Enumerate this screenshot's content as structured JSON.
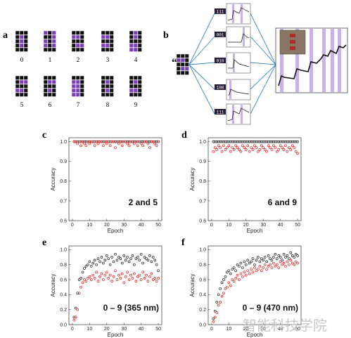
{
  "panels": {
    "a": "a",
    "b": "b",
    "c": "c",
    "d": "d",
    "e": "e",
    "f": "f"
  },
  "digits": {
    "labels": [
      "0",
      "1",
      "2",
      "3",
      "4",
      "5",
      "6",
      "7",
      "8",
      "9"
    ],
    "patterns": [
      [
        "111",
        "101",
        "101",
        "101",
        "111"
      ],
      [
        "010",
        "110",
        "010",
        "010",
        "111"
      ],
      [
        "111",
        "001",
        "111",
        "100",
        "111"
      ],
      [
        "111",
        "001",
        "111",
        "001",
        "111"
      ],
      [
        "101",
        "101",
        "111",
        "001",
        "001"
      ],
      [
        "111",
        "100",
        "111",
        "001",
        "111"
      ],
      [
        "111",
        "100",
        "111",
        "101",
        "111"
      ],
      [
        "111",
        "001",
        "001",
        "001",
        "001"
      ],
      [
        "111",
        "101",
        "111",
        "101",
        "111"
      ],
      [
        "111",
        "101",
        "111",
        "001",
        "111"
      ]
    ]
  },
  "diagram_b": {
    "quote": "“2”",
    "codes": [
      "111",
      "001",
      "010",
      "100",
      "111"
    ]
  },
  "colors": {
    "purple": "#7a3fb5",
    "light_purple": "#c9b3e6",
    "black_series": "#222222",
    "red_series": "#e02020",
    "line_blue": "#3a86c8"
  },
  "watermark": "智能科技学院",
  "chart_data": [
    {
      "id": "c",
      "type": "scatter",
      "xlabel": "Epoch",
      "ylabel": "Accuracy",
      "annotation": "2 and 5",
      "xlim": [
        -2,
        52
      ],
      "ylim": [
        0.6,
        1.02
      ],
      "xticks": [
        "0",
        "10",
        "20",
        "30",
        "40",
        "50"
      ],
      "yticks": [
        "0.6",
        "0.7",
        "0.8",
        "0.9",
        "1.0"
      ],
      "series": [
        {
          "color": "black",
          "x": [
            1,
            2,
            3,
            4,
            5,
            6,
            7,
            8,
            9,
            10,
            11,
            12,
            13,
            14,
            15,
            16,
            17,
            18,
            19,
            20,
            21,
            22,
            23,
            24,
            25,
            26,
            27,
            28,
            29,
            30,
            31,
            32,
            33,
            34,
            35,
            36,
            37,
            38,
            39,
            40,
            41,
            42,
            43,
            44,
            45,
            46,
            47,
            48,
            49,
            50
          ],
          "y": [
            1,
            1,
            1,
            1,
            1,
            1,
            1,
            1,
            1,
            1,
            1,
            1,
            1,
            1,
            1,
            1,
            1,
            1,
            1,
            1,
            1,
            1,
            1,
            1,
            1,
            1,
            1,
            1,
            1,
            1,
            1,
            1,
            1,
            1,
            1,
            1,
            1,
            1,
            1,
            1,
            1,
            1,
            1,
            1,
            1,
            1,
            1,
            1,
            1,
            1
          ]
        },
        {
          "color": "red",
          "x": [
            1,
            2,
            3,
            4,
            5,
            6,
            7,
            8,
            9,
            10,
            11,
            12,
            13,
            14,
            15,
            16,
            17,
            18,
            19,
            20,
            21,
            22,
            23,
            24,
            25,
            26,
            27,
            28,
            29,
            30,
            31,
            32,
            33,
            34,
            35,
            36,
            37,
            38,
            39,
            40,
            41,
            42,
            43,
            44,
            45,
            46,
            47,
            48,
            49,
            50
          ],
          "y": [
            1,
            1,
            0.99,
            1,
            0.98,
            1,
            0.99,
            0.98,
            1,
            0.99,
            1,
            1,
            0.98,
            1,
            0.99,
            1,
            1,
            0.98,
            1,
            0.99,
            1,
            0.98,
            1,
            1,
            0.97,
            1,
            0.99,
            1,
            0.98,
            1,
            1,
            0.99,
            0.98,
            1,
            1,
            0.99,
            1,
            0.98,
            1,
            0.99,
            0.98,
            1,
            1,
            0.99,
            0.97,
            1,
            1,
            0.99,
            0.98,
            1
          ]
        }
      ]
    },
    {
      "id": "d",
      "type": "scatter",
      "xlabel": "Epoch",
      "ylabel": "Accuracy",
      "annotation": "6 and 9",
      "xlim": [
        -2,
        52
      ],
      "ylim": [
        0.6,
        1.02
      ],
      "xticks": [
        "0",
        "10",
        "20",
        "30",
        "40",
        "50"
      ],
      "yticks": [
        "0.6",
        "0.7",
        "0.8",
        "0.9",
        "1.0"
      ],
      "series": [
        {
          "color": "black",
          "x": [
            1,
            2,
            3,
            4,
            5,
            6,
            7,
            8,
            9,
            10,
            11,
            12,
            13,
            14,
            15,
            16,
            17,
            18,
            19,
            20,
            21,
            22,
            23,
            24,
            25,
            26,
            27,
            28,
            29,
            30,
            31,
            32,
            33,
            34,
            35,
            36,
            37,
            38,
            39,
            40,
            41,
            42,
            43,
            44,
            45,
            46,
            47,
            48,
            49,
            50
          ],
          "y": [
            1,
            1,
            1,
            1,
            1,
            1,
            1,
            1,
            1,
            1,
            1,
            1,
            1,
            1,
            1,
            1,
            1,
            1,
            1,
            1,
            1,
            1,
            1,
            1,
            1,
            1,
            1,
            1,
            1,
            1,
            1,
            1,
            1,
            1,
            1,
            1,
            1,
            1,
            1,
            1,
            1,
            1,
            1,
            1,
            1,
            1,
            1,
            1,
            1,
            1
          ]
        },
        {
          "color": "red",
          "x": [
            1,
            2,
            3,
            4,
            5,
            6,
            7,
            8,
            9,
            10,
            11,
            12,
            13,
            14,
            15,
            16,
            17,
            18,
            19,
            20,
            21,
            22,
            23,
            24,
            25,
            26,
            27,
            28,
            29,
            30,
            31,
            32,
            33,
            34,
            35,
            36,
            37,
            38,
            39,
            40,
            41,
            42,
            43,
            44,
            45,
            46,
            47,
            48,
            49,
            50
          ],
          "y": [
            0.95,
            0.97,
            0.96,
            0.98,
            0.97,
            0.95,
            0.98,
            0.96,
            0.97,
            0.98,
            0.95,
            0.97,
            0.96,
            0.98,
            0.97,
            0.96,
            0.95,
            0.98,
            0.97,
            0.96,
            0.98,
            0.95,
            0.97,
            0.96,
            0.98,
            0.97,
            0.95,
            0.96,
            0.98,
            0.97,
            0.96,
            0.95,
            0.98,
            0.97,
            0.96,
            0.98,
            0.97,
            0.95,
            0.96,
            0.98,
            0.97,
            0.96,
            0.98,
            0.95,
            0.97,
            0.96,
            0.98,
            0.97,
            0.95,
            0.94
          ]
        }
      ]
    },
    {
      "id": "e",
      "type": "scatter",
      "xlabel": "Epoch",
      "ylabel": "Accuracy",
      "annotation": "0 – 9 (365 nm)",
      "xlim": [
        -2,
        52
      ],
      "ylim": [
        0.0,
        1.05
      ],
      "xticks": [
        "0",
        "10",
        "20",
        "30",
        "40",
        "50"
      ],
      "yticks": [
        "0.0",
        "0.2",
        "0.4",
        "0.6",
        "0.8",
        "1.0"
      ],
      "series": [
        {
          "color": "black",
          "x": [
            1,
            2,
            3,
            4,
            5,
            6,
            7,
            8,
            9,
            10,
            11,
            12,
            13,
            14,
            15,
            16,
            17,
            18,
            19,
            20,
            21,
            22,
            23,
            24,
            25,
            26,
            27,
            28,
            29,
            30,
            31,
            32,
            33,
            34,
            35,
            36,
            37,
            38,
            39,
            40,
            41,
            42,
            43,
            44,
            45,
            46,
            47,
            48,
            49,
            50
          ],
          "y": [
            0.1,
            0.22,
            0.42,
            0.6,
            0.62,
            0.7,
            0.75,
            0.78,
            0.8,
            0.84,
            0.78,
            0.82,
            0.86,
            0.8,
            0.88,
            0.84,
            0.9,
            0.82,
            0.86,
            0.92,
            0.88,
            0.8,
            0.9,
            0.84,
            0.94,
            0.86,
            0.9,
            0.88,
            0.82,
            0.92,
            0.86,
            0.9,
            0.84,
            0.88,
            0.92,
            0.8,
            0.88,
            0.9,
            0.86,
            0.94,
            0.82,
            0.9,
            0.88,
            0.86,
            0.92,
            0.84,
            0.9,
            0.86,
            0.8,
            0.72
          ]
        },
        {
          "color": "red",
          "x": [
            1,
            2,
            3,
            4,
            5,
            6,
            7,
            8,
            9,
            10,
            11,
            12,
            13,
            14,
            15,
            16,
            17,
            18,
            19,
            20,
            21,
            22,
            23,
            24,
            25,
            26,
            27,
            28,
            29,
            30,
            31,
            32,
            33,
            34,
            35,
            36,
            37,
            38,
            39,
            40,
            41,
            42,
            43,
            44,
            45,
            46,
            47,
            48,
            49,
            50
          ],
          "y": [
            0.06,
            0.1,
            0.2,
            0.42,
            0.5,
            0.56,
            0.6,
            0.58,
            0.62,
            0.64,
            0.6,
            0.66,
            0.62,
            0.7,
            0.58,
            0.64,
            0.68,
            0.6,
            0.66,
            0.7,
            0.62,
            0.66,
            0.58,
            0.64,
            0.72,
            0.6,
            0.66,
            0.62,
            0.68,
            0.56,
            0.64,
            0.7,
            0.6,
            0.66,
            0.62,
            0.68,
            0.58,
            0.64,
            0.66,
            0.6,
            0.7,
            0.62,
            0.66,
            0.58,
            0.64,
            0.68,
            0.6,
            0.62,
            0.58,
            0.62
          ]
        }
      ]
    },
    {
      "id": "f",
      "type": "scatter",
      "xlabel": "Epoch",
      "ylabel": "Accuracy",
      "annotation": "0 – 9 (470 nm)",
      "xlim": [
        -2,
        52
      ],
      "ylim": [
        0.0,
        1.05
      ],
      "xticks": [
        "0",
        "10",
        "20",
        "30",
        "40",
        "50"
      ],
      "yticks": [
        "0.0",
        "0.2",
        "0.4",
        "0.6",
        "0.8",
        "1.0"
      ],
      "series": [
        {
          "color": "black",
          "x": [
            1,
            2,
            3,
            4,
            5,
            6,
            7,
            8,
            9,
            10,
            11,
            12,
            13,
            14,
            15,
            16,
            17,
            18,
            19,
            20,
            21,
            22,
            23,
            24,
            25,
            26,
            27,
            28,
            29,
            30,
            31,
            32,
            33,
            34,
            35,
            36,
            37,
            38,
            39,
            40,
            41,
            42,
            43,
            44,
            45,
            46,
            47,
            48,
            49,
            50
          ],
          "y": [
            0.08,
            0.18,
            0.3,
            0.4,
            0.48,
            0.56,
            0.6,
            0.64,
            0.7,
            0.72,
            0.68,
            0.74,
            0.76,
            0.72,
            0.8,
            0.78,
            0.82,
            0.76,
            0.84,
            0.8,
            0.86,
            0.82,
            0.84,
            0.88,
            0.8,
            0.86,
            0.9,
            0.84,
            0.88,
            0.86,
            0.9,
            0.84,
            0.92,
            0.88,
            0.86,
            0.9,
            0.94,
            0.88,
            0.92,
            0.9,
            0.86,
            0.94,
            0.9,
            0.92,
            0.88,
            0.96,
            0.92,
            0.9,
            0.94,
            0.92
          ]
        },
        {
          "color": "red",
          "x": [
            1,
            2,
            3,
            4,
            5,
            6,
            7,
            8,
            9,
            10,
            11,
            12,
            13,
            14,
            15,
            16,
            17,
            18,
            19,
            20,
            21,
            22,
            23,
            24,
            25,
            26,
            27,
            28,
            29,
            30,
            31,
            32,
            33,
            34,
            35,
            36,
            37,
            38,
            39,
            40,
            41,
            42,
            43,
            44,
            45,
            46,
            47,
            48,
            49,
            50
          ],
          "y": [
            0.04,
            0.1,
            0.16,
            0.26,
            0.3,
            0.38,
            0.42,
            0.48,
            0.5,
            0.56,
            0.52,
            0.6,
            0.58,
            0.62,
            0.66,
            0.6,
            0.68,
            0.64,
            0.7,
            0.66,
            0.72,
            0.68,
            0.74,
            0.7,
            0.76,
            0.72,
            0.74,
            0.78,
            0.72,
            0.76,
            0.8,
            0.74,
            0.78,
            0.8,
            0.76,
            0.82,
            0.78,
            0.8,
            0.76,
            0.84,
            0.8,
            0.82,
            0.78,
            0.84,
            0.8,
            0.86,
            0.82,
            0.8,
            0.84,
            0.82
          ]
        }
      ]
    }
  ]
}
